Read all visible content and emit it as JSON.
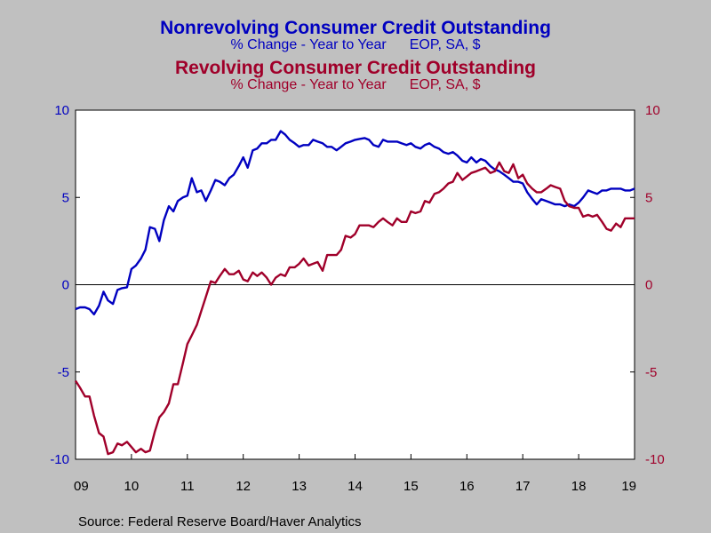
{
  "colors": {
    "background": "#c0c0c0",
    "plot_area": "#ffffff",
    "nonrevolving": "#0000c0",
    "revolving": "#a0002a"
  },
  "titles": {
    "series1_title": "Nonrevolving Consumer Credit Outstanding",
    "series1_sub_a": "% Change - Year to Year",
    "series1_sub_b": "EOP, SA, $",
    "series2_title": "Revolving Consumer Credit Outstanding",
    "series2_sub_a": "% Change - Year to Year",
    "series2_sub_b": "EOP, SA, $"
  },
  "source": "Source:  Federal Reserve Board/Haver Analytics",
  "chart_data": {
    "type": "line",
    "x_tick_labels": [
      "09",
      "10",
      "11",
      "12",
      "13",
      "14",
      "15",
      "16",
      "17",
      "18",
      "19"
    ],
    "x_range": [
      2009.0,
      2019.0
    ],
    "ylim": [
      -10,
      10
    ],
    "y_left_ticks": [
      "10",
      "5",
      "0",
      "-5",
      "-10"
    ],
    "y_right_ticks": [
      "10",
      "5",
      "0",
      "-5",
      "-10"
    ],
    "zero_line": true,
    "grid": false,
    "series": [
      {
        "name": "Nonrevolving Consumer Credit Outstanding",
        "axis": "left",
        "color": "#0000c0",
        "x": [
          2009.0,
          2009.08,
          2009.17,
          2009.25,
          2009.33,
          2009.42,
          2009.5,
          2009.58,
          2009.67,
          2009.75,
          2009.83,
          2009.92,
          2010.0,
          2010.08,
          2010.17,
          2010.25,
          2010.33,
          2010.42,
          2010.5,
          2010.58,
          2010.67,
          2010.75,
          2010.83,
          2010.92,
          2011.0,
          2011.08,
          2011.17,
          2011.25,
          2011.33,
          2011.42,
          2011.5,
          2011.58,
          2011.67,
          2011.75,
          2011.83,
          2011.92,
          2012.0,
          2012.08,
          2012.17,
          2012.25,
          2012.33,
          2012.42,
          2012.5,
          2012.58,
          2012.67,
          2012.75,
          2012.83,
          2012.92,
          2013.0,
          2013.08,
          2013.17,
          2013.25,
          2013.33,
          2013.42,
          2013.5,
          2013.58,
          2013.67,
          2013.75,
          2013.83,
          2013.92,
          2014.0,
          2014.08,
          2014.17,
          2014.25,
          2014.33,
          2014.42,
          2014.5,
          2014.58,
          2014.67,
          2014.75,
          2014.83,
          2014.92,
          2015.0,
          2015.08,
          2015.17,
          2015.25,
          2015.33,
          2015.42,
          2015.5,
          2015.58,
          2015.67,
          2015.75,
          2015.83,
          2015.92,
          2016.0,
          2016.08,
          2016.17,
          2016.25,
          2016.33,
          2016.42,
          2016.5,
          2016.58,
          2016.67,
          2016.75,
          2016.83,
          2016.92,
          2017.0,
          2017.08,
          2017.17,
          2017.25,
          2017.33,
          2017.42,
          2017.5,
          2017.58,
          2017.67,
          2017.75,
          2017.83,
          2017.92,
          2018.0,
          2018.08,
          2018.17,
          2018.25,
          2018.33,
          2018.42,
          2018.5,
          2018.58,
          2018.67,
          2018.75,
          2018.83,
          2018.92,
          2019.0
        ],
        "values": [
          -1.4,
          -1.3,
          -1.3,
          -1.4,
          -1.7,
          -1.2,
          -0.4,
          -0.9,
          -1.1,
          -0.3,
          -0.2,
          -0.15,
          0.9,
          1.1,
          1.5,
          2.0,
          3.3,
          3.2,
          2.5,
          3.7,
          4.5,
          4.2,
          4.8,
          5.0,
          5.1,
          6.1,
          5.3,
          5.4,
          4.8,
          5.4,
          6.0,
          5.9,
          5.7,
          6.1,
          6.3,
          6.8,
          7.3,
          6.7,
          7.7,
          7.8,
          8.1,
          8.1,
          8.3,
          8.3,
          8.8,
          8.6,
          8.3,
          8.1,
          7.9,
          8.0,
          8.0,
          8.3,
          8.2,
          8.1,
          7.9,
          7.9,
          7.7,
          7.9,
          8.1,
          8.2,
          8.3,
          8.35,
          8.4,
          8.3,
          8.0,
          7.9,
          8.3,
          8.2,
          8.2,
          8.2,
          8.1,
          8.0,
          8.1,
          7.9,
          7.8,
          8.0,
          8.1,
          7.9,
          7.8,
          7.6,
          7.5,
          7.6,
          7.4,
          7.1,
          7.0,
          7.3,
          7.0,
          7.2,
          7.1,
          6.8,
          6.6,
          6.5,
          6.3,
          6.1,
          5.9,
          5.9,
          5.8,
          5.3,
          4.9,
          4.6,
          4.9,
          4.8,
          4.7,
          4.6,
          4.6,
          4.5,
          4.6,
          4.5,
          4.7,
          5.0,
          5.4,
          5.3,
          5.2,
          5.4,
          5.4,
          5.5,
          5.5,
          5.5,
          5.4,
          5.4,
          5.5
        ]
      },
      {
        "name": "Revolving Consumer Credit Outstanding",
        "axis": "right",
        "color": "#a0002a",
        "x": [
          2009.0,
          2009.08,
          2009.17,
          2009.25,
          2009.33,
          2009.42,
          2009.5,
          2009.58,
          2009.67,
          2009.75,
          2009.83,
          2009.92,
          2010.0,
          2010.08,
          2010.17,
          2010.25,
          2010.33,
          2010.42,
          2010.5,
          2010.58,
          2010.67,
          2010.75,
          2010.83,
          2010.92,
          2011.0,
          2011.08,
          2011.17,
          2011.25,
          2011.33,
          2011.42,
          2011.5,
          2011.58,
          2011.67,
          2011.75,
          2011.83,
          2011.92,
          2012.0,
          2012.08,
          2012.17,
          2012.25,
          2012.33,
          2012.42,
          2012.5,
          2012.58,
          2012.67,
          2012.75,
          2012.83,
          2012.92,
          2013.0,
          2013.08,
          2013.17,
          2013.25,
          2013.33,
          2013.42,
          2013.5,
          2013.58,
          2013.67,
          2013.75,
          2013.83,
          2013.92,
          2014.0,
          2014.08,
          2014.17,
          2014.25,
          2014.33,
          2014.42,
          2014.5,
          2014.58,
          2014.67,
          2014.75,
          2014.83,
          2014.92,
          2015.0,
          2015.08,
          2015.17,
          2015.25,
          2015.33,
          2015.42,
          2015.5,
          2015.58,
          2015.67,
          2015.75,
          2015.83,
          2015.92,
          2016.0,
          2016.08,
          2016.17,
          2016.25,
          2016.33,
          2016.42,
          2016.5,
          2016.58,
          2016.67,
          2016.75,
          2016.83,
          2016.92,
          2017.0,
          2017.08,
          2017.17,
          2017.25,
          2017.33,
          2017.42,
          2017.5,
          2017.58,
          2017.67,
          2017.75,
          2017.83,
          2017.92,
          2018.0,
          2018.08,
          2018.17,
          2018.25,
          2018.33,
          2018.42,
          2018.5,
          2018.58,
          2018.67,
          2018.75,
          2018.83,
          2018.92,
          2019.0
        ],
        "values": [
          -5.5,
          -5.9,
          -6.4,
          -6.4,
          -7.5,
          -8.5,
          -8.7,
          -9.7,
          -9.6,
          -9.1,
          -9.2,
          -9.0,
          -9.3,
          -9.6,
          -9.4,
          -9.6,
          -9.5,
          -8.4,
          -7.6,
          -7.3,
          -6.8,
          -5.7,
          -5.7,
          -4.5,
          -3.4,
          -2.9,
          -2.3,
          -1.5,
          -0.7,
          0.2,
          0.1,
          0.5,
          0.9,
          0.6,
          0.6,
          0.8,
          0.3,
          0.2,
          0.7,
          0.5,
          0.7,
          0.4,
          0.0,
          0.4,
          0.6,
          0.5,
          1.0,
          1.0,
          1.2,
          1.5,
          1.1,
          1.2,
          1.3,
          0.8,
          1.7,
          1.7,
          1.7,
          2.0,
          2.8,
          2.7,
          2.9,
          3.4,
          3.4,
          3.4,
          3.3,
          3.6,
          3.8,
          3.6,
          3.4,
          3.8,
          3.6,
          3.6,
          4.2,
          4.1,
          4.2,
          4.8,
          4.7,
          5.2,
          5.3,
          5.5,
          5.8,
          5.9,
          6.4,
          6.0,
          6.2,
          6.4,
          6.5,
          6.6,
          6.7,
          6.4,
          6.5,
          7.0,
          6.5,
          6.4,
          6.9,
          6.1,
          6.3,
          5.8,
          5.5,
          5.3,
          5.3,
          5.5,
          5.7,
          5.6,
          5.5,
          4.8,
          4.5,
          4.4,
          4.4,
          3.9,
          4.0,
          3.9,
          4.0,
          3.6,
          3.2,
          3.1,
          3.5,
          3.3,
          3.8,
          3.8,
          3.8
        ]
      }
    ]
  }
}
